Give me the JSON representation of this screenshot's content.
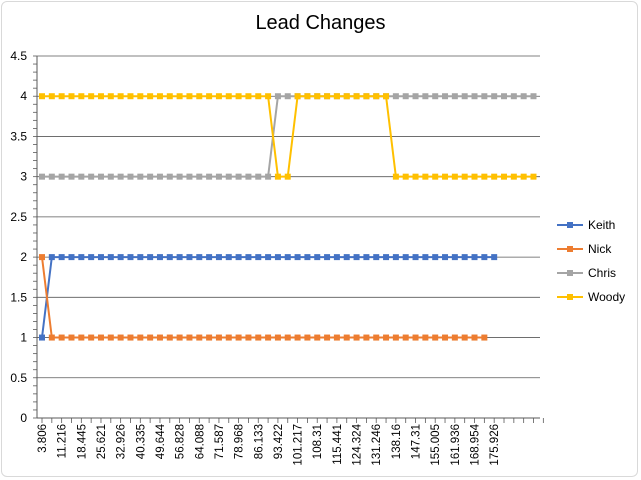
{
  "chart_data": {
    "type": "line",
    "title": "Lead Changes",
    "xlabel": "",
    "ylabel": "",
    "ylim": [
      0,
      4.5
    ],
    "y_ticks": [
      "0",
      "0.5",
      "1",
      "1.5",
      "2",
      "2.5",
      "3",
      "3.5",
      "4",
      "4.5"
    ],
    "x_tick_labels": [
      "3.806",
      "11.216",
      "18.445",
      "25.621",
      "32.926",
      "40.335",
      "49.644",
      "56.828",
      "64.088",
      "71.587",
      "78.968",
      "86.133",
      "93.422",
      "101.217",
      "108.31",
      "115.441",
      "124.324",
      "131.246",
      "138.16",
      "147.31",
      "155.005",
      "161.936",
      "168.954",
      "175.926"
    ],
    "grid": true,
    "legend_position": "right",
    "series": [
      {
        "name": "Keith",
        "color": "#4472C4",
        "values": [
          1,
          2,
          2,
          2,
          2,
          2,
          2,
          2,
          2,
          2,
          2,
          2,
          2,
          2,
          2,
          2,
          2,
          2,
          2,
          2,
          2,
          2,
          2,
          2,
          2,
          2,
          2,
          2,
          2,
          2,
          2,
          2,
          2,
          2,
          2,
          2,
          2,
          2,
          2,
          2,
          2,
          2,
          2,
          2,
          2,
          2,
          2
        ]
      },
      {
        "name": "Nick",
        "color": "#ED7D31",
        "values": [
          2,
          1,
          1,
          1,
          1,
          1,
          1,
          1,
          1,
          1,
          1,
          1,
          1,
          1,
          1,
          1,
          1,
          1,
          1,
          1,
          1,
          1,
          1,
          1,
          1,
          1,
          1,
          1,
          1,
          1,
          1,
          1,
          1,
          1,
          1,
          1,
          1,
          1,
          1,
          1,
          1,
          1,
          1,
          1,
          1,
          1
        ]
      },
      {
        "name": "Chris",
        "color": "#A5A5A5",
        "values": [
          3,
          3,
          3,
          3,
          3,
          3,
          3,
          3,
          3,
          3,
          3,
          3,
          3,
          3,
          3,
          3,
          3,
          3,
          3,
          3,
          3,
          3,
          3,
          3,
          4,
          4,
          4,
          4,
          4,
          4,
          4,
          4,
          4,
          4,
          4,
          4,
          4,
          4,
          4,
          4,
          4,
          4,
          4,
          4,
          4,
          4,
          4,
          4,
          4,
          4,
          4
        ]
      },
      {
        "name": "Woody",
        "color": "#FFC000",
        "values": [
          4,
          4,
          4,
          4,
          4,
          4,
          4,
          4,
          4,
          4,
          4,
          4,
          4,
          4,
          4,
          4,
          4,
          4,
          4,
          4,
          4,
          4,
          4,
          4,
          3,
          3,
          4,
          4,
          4,
          4,
          4,
          4,
          4,
          4,
          4,
          4,
          3,
          3,
          3,
          3,
          3,
          3,
          3,
          3,
          3,
          3,
          3,
          3,
          3,
          3,
          3
        ]
      }
    ]
  }
}
